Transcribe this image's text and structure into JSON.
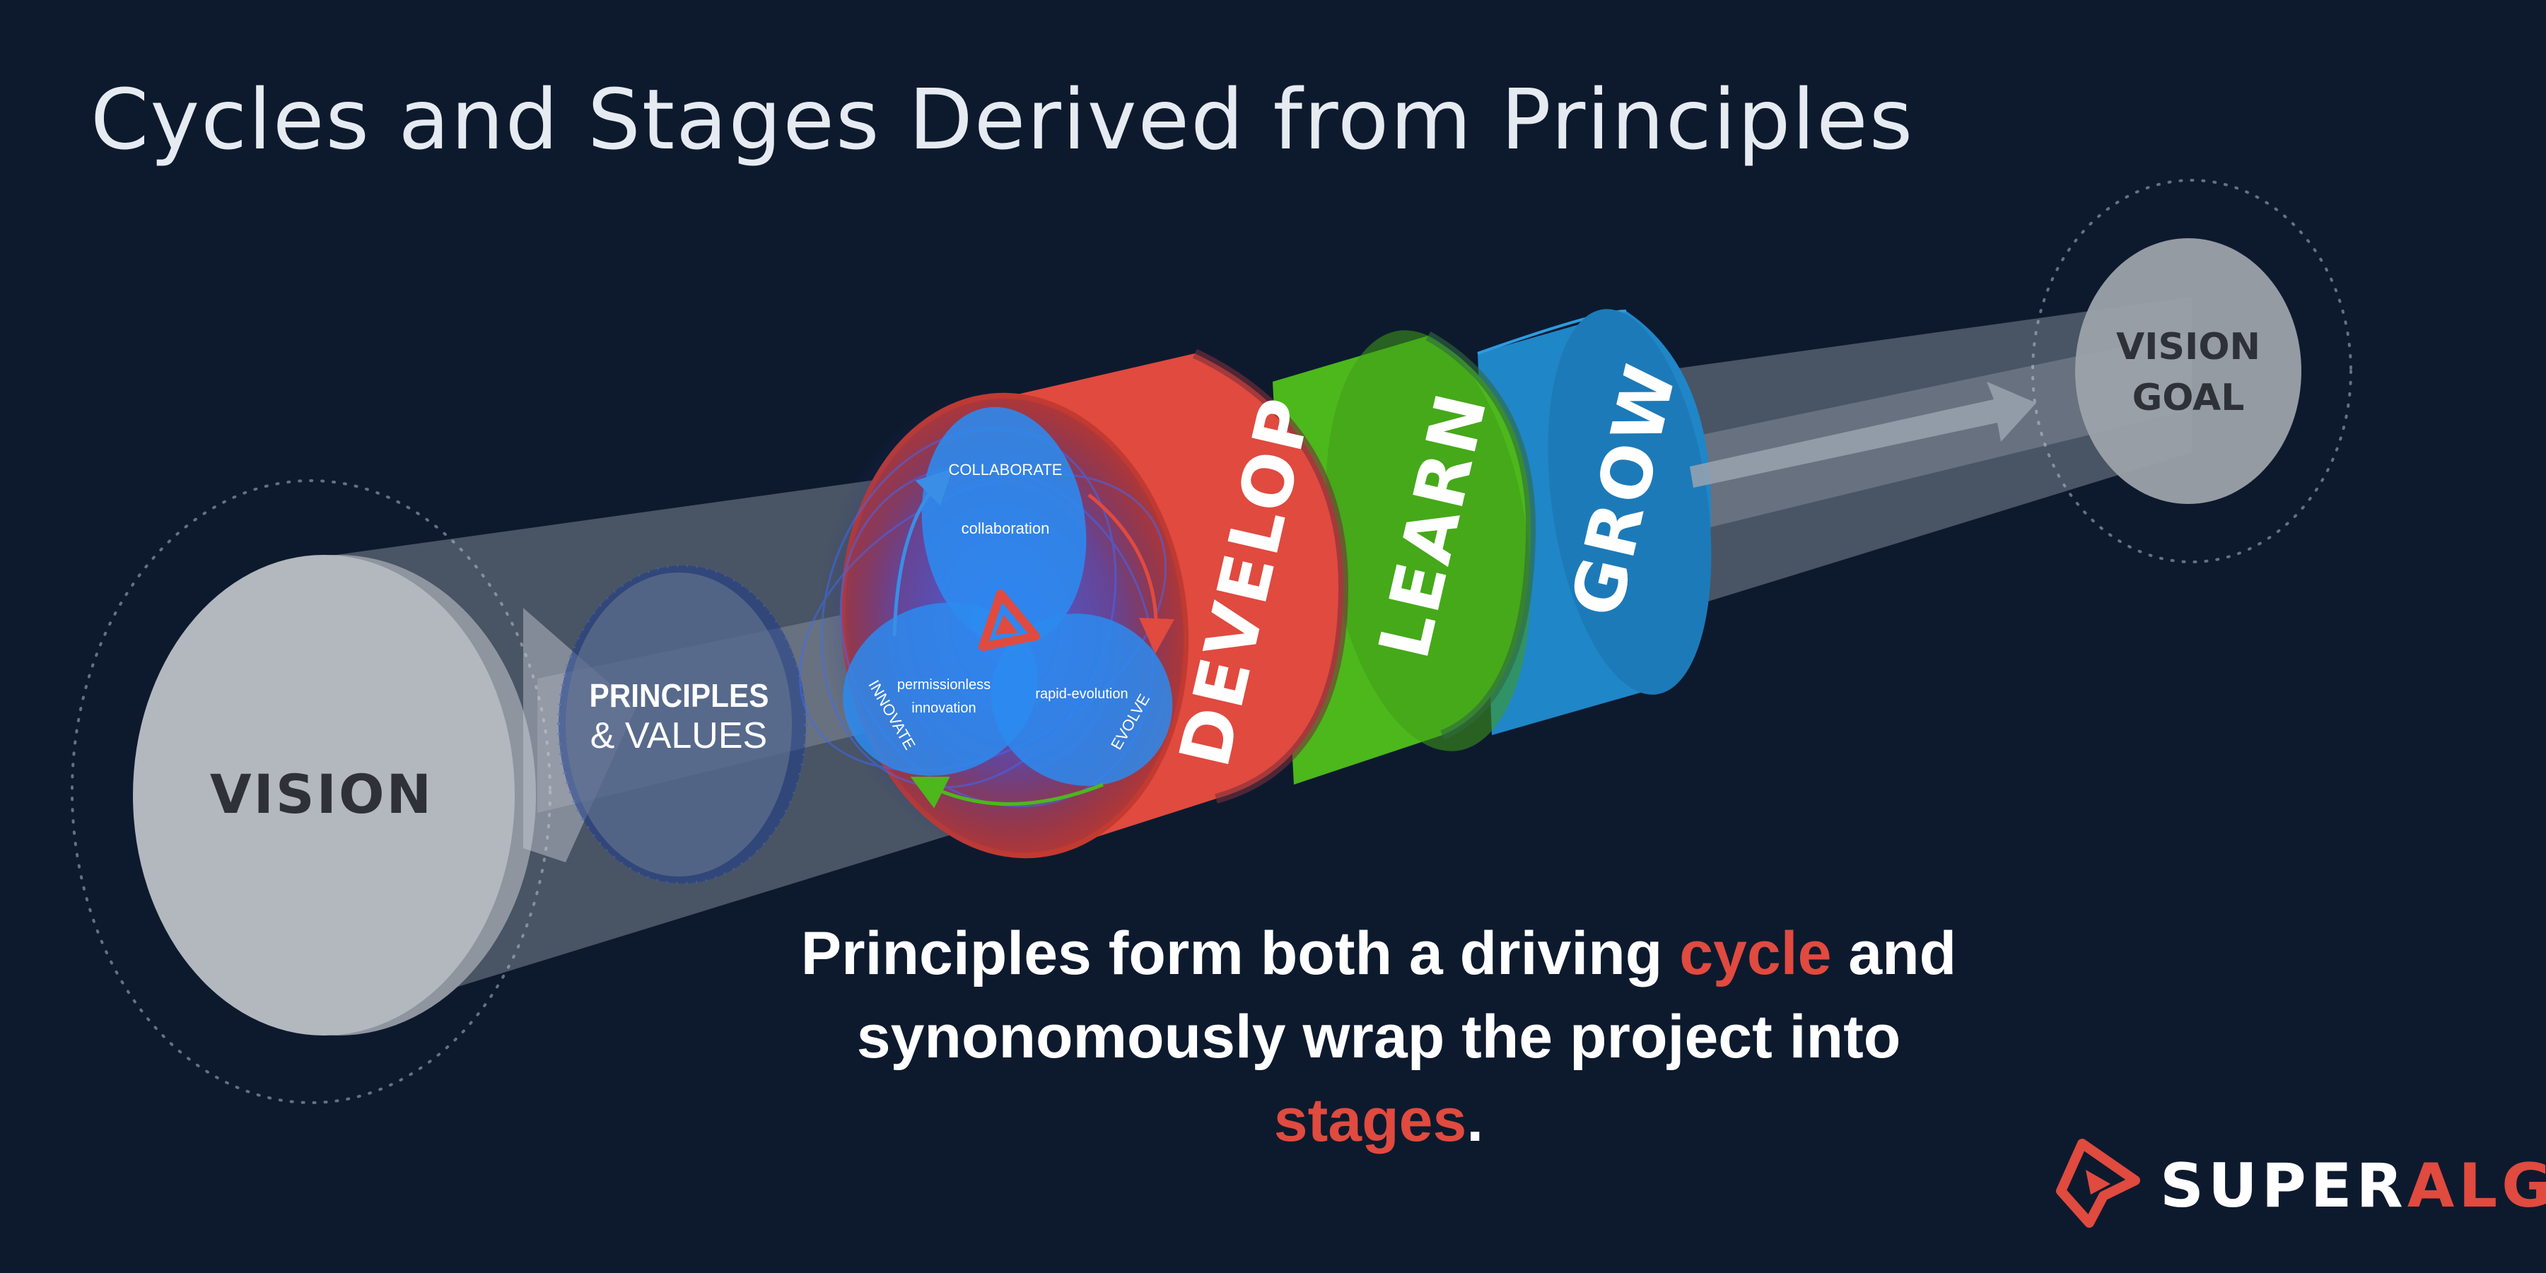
{
  "title": "Cycles and Stages Derived from Principles",
  "vision": "VISION",
  "principles": {
    "line1": "PRINCIPLES",
    "line2": "& VALUES"
  },
  "cycle": {
    "collaborate": "COLLABORATE",
    "collaboration": "collaboration",
    "innovate": "INNOVATE",
    "permissionless": "permissionless",
    "innovation": "innovation",
    "evolve": "EVOLVE",
    "rapid_evolution": "rapid-evolution"
  },
  "stages": {
    "develop": "DEVELOP",
    "learn": "LEARN",
    "grow": "GROW"
  },
  "vision_goal": {
    "line1": "VISION",
    "line2": "GOAL"
  },
  "tagline": {
    "l1_a": "Principles form both a driving ",
    "l1_hl": "cycle",
    "l1_b": " and",
    "l2_a": "synonomously wrap the project into ",
    "l2_hl": "stages",
    "l2_b": "."
  },
  "brand": {
    "part1": "SUPER",
    "part2": "ALGOS"
  },
  "colors": {
    "background": "#0d1a2e",
    "develop": "#e04a3f",
    "learn": "#4cb81c",
    "grow": "#1f86c8",
    "accent": "#e04a3f"
  }
}
